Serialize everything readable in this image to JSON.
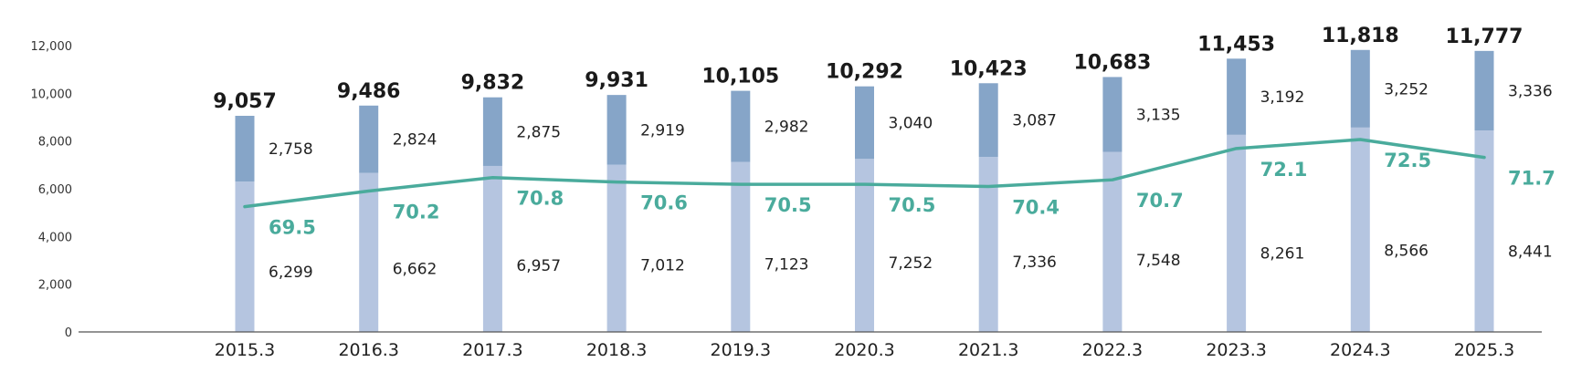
{
  "colors": {
    "bottom_segment": "#b5c5e0",
    "top_segment": "#86a5c8",
    "line": "#4aab9c",
    "axis": "#555555"
  },
  "chart_data": {
    "type": "bar",
    "stacked": true,
    "categories": [
      "2015.3",
      "2016.3",
      "2017.3",
      "2018.3",
      "2019.3",
      "2020.3",
      "2021.3",
      "2022.3",
      "2023.3",
      "2024.3",
      "2025.3"
    ],
    "series": [
      {
        "values": [
          6299,
          6662,
          6957,
          7012,
          7123,
          7252,
          7336,
          7548,
          8261,
          8566,
          8441
        ],
        "color": "#b5c5e0"
      },
      {
        "values": [
          2758,
          2824,
          2875,
          2919,
          2982,
          3040,
          3087,
          3135,
          3192,
          3252,
          3336
        ],
        "color": "#86a5c8"
      }
    ],
    "totals": [
      9057,
      9486,
      9832,
      9931,
      10105,
      10292,
      10423,
      10683,
      11453,
      11818,
      11777
    ],
    "line_series": {
      "type": "line",
      "values": [
        69.5,
        70.2,
        70.8,
        70.6,
        70.5,
        70.5,
        70.4,
        70.7,
        72.1,
        72.5,
        71.7
      ],
      "color": "#4aab9c"
    },
    "ylim": [
      0,
      12000
    ],
    "yticks": [
      0,
      2000,
      4000,
      6000,
      8000,
      10000,
      12000
    ],
    "title": "",
    "xlabel": "",
    "ylabel": "",
    "grid": false,
    "legend": false
  }
}
